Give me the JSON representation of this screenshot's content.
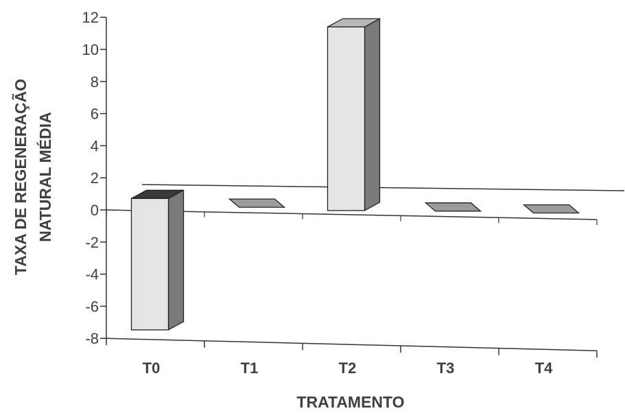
{
  "chart_data": {
    "type": "bar",
    "style": "3d",
    "categories": [
      "T0",
      "T1",
      "T2",
      "T3",
      "T4"
    ],
    "values": [
      -7.3,
      0,
      11.4,
      0,
      0
    ],
    "title": "",
    "xlabel": "TRATAMENTO",
    "ylabel_lines": [
      "TAXA DE REGENERAÇÃO",
      "NATURAL MÉDIA"
    ],
    "yticks": [
      "12",
      "10",
      "8",
      "6",
      "4",
      "2",
      "0",
      "-2",
      "-4",
      "-6",
      "-8"
    ],
    "ylim": [
      -8,
      12
    ],
    "grid": false,
    "legend": "none"
  },
  "colors": {
    "bar_front": "#e4e4e4",
    "bar_side": "#7a7a7a",
    "bar_top": "#b8b8b8",
    "zero_marker": "#9c9c9c",
    "axis": "#333333",
    "text": "#404040"
  }
}
